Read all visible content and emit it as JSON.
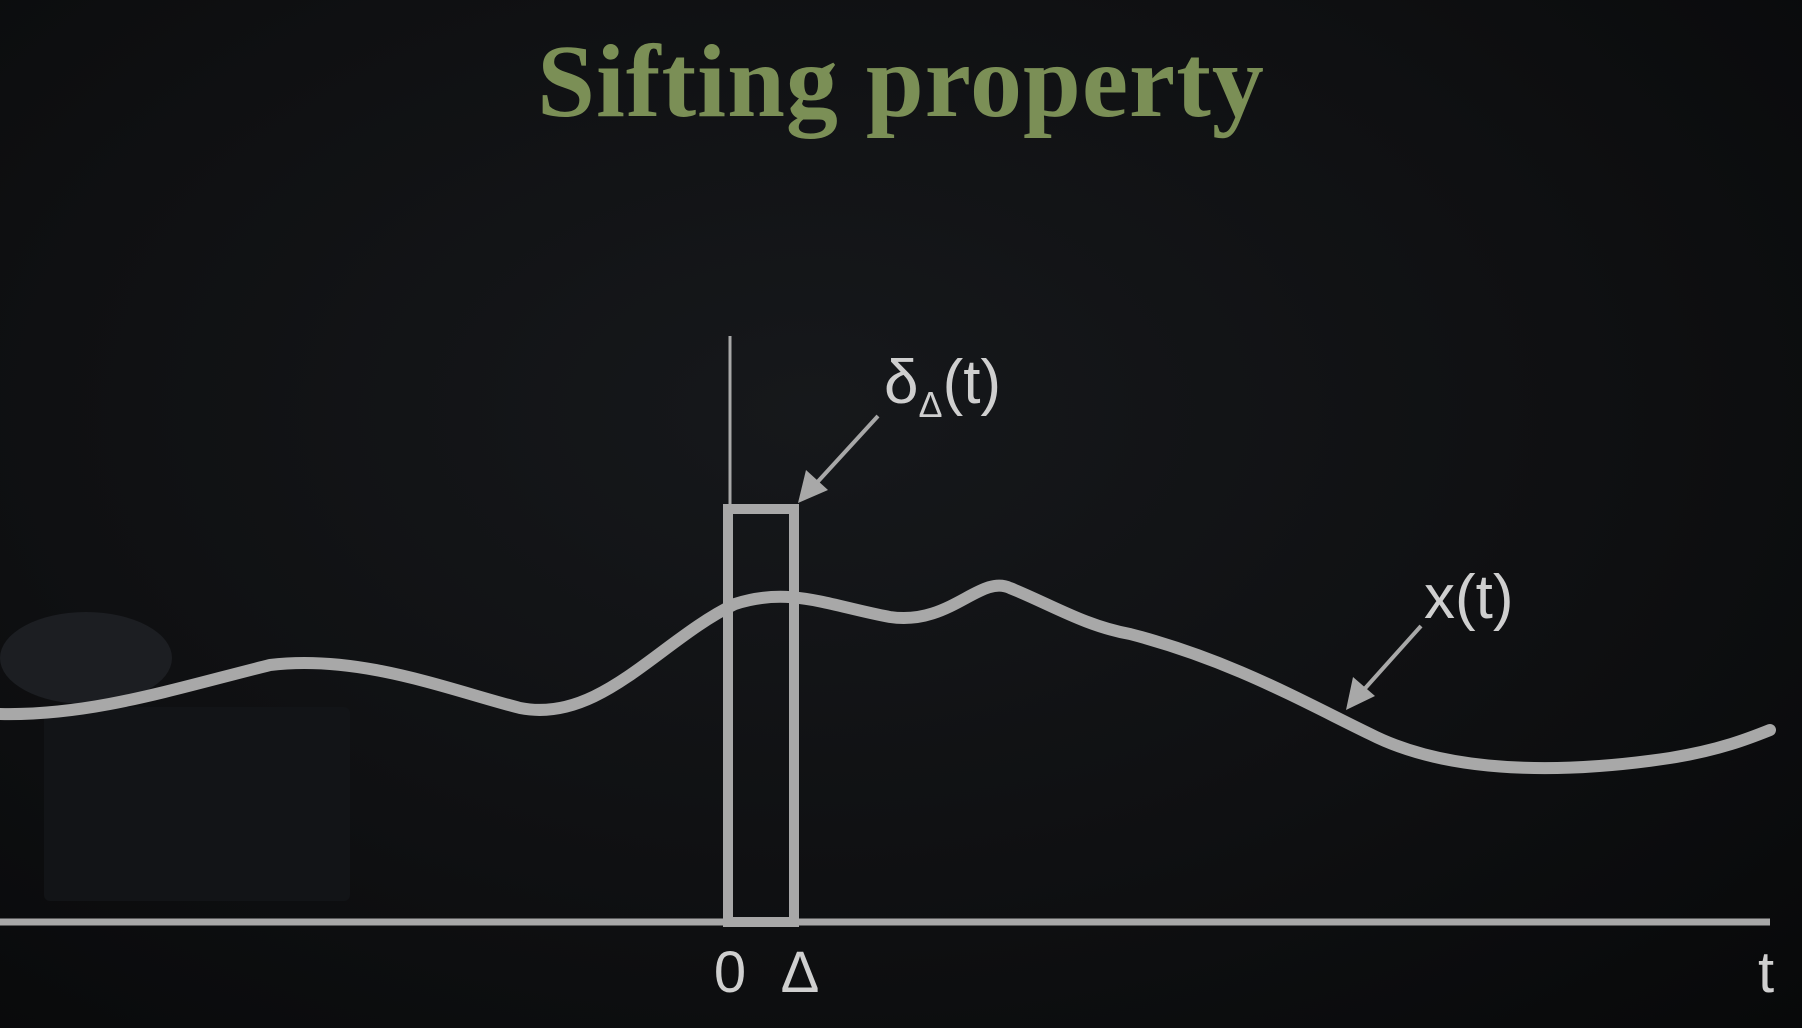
{
  "slide": {
    "title": "Sifting property"
  },
  "diagram": {
    "delta_label_main": "δ",
    "delta_label_sub": "Δ",
    "delta_label_arg": "(t)",
    "signal_label": "x(t)",
    "tick_zero": "0",
    "tick_delta": "Δ",
    "axis_label": "t"
  },
  "colors": {
    "background": "#0f1012",
    "title": "#7b8f56",
    "lines": "#a8a8a8",
    "text": "#cfcfcf"
  }
}
